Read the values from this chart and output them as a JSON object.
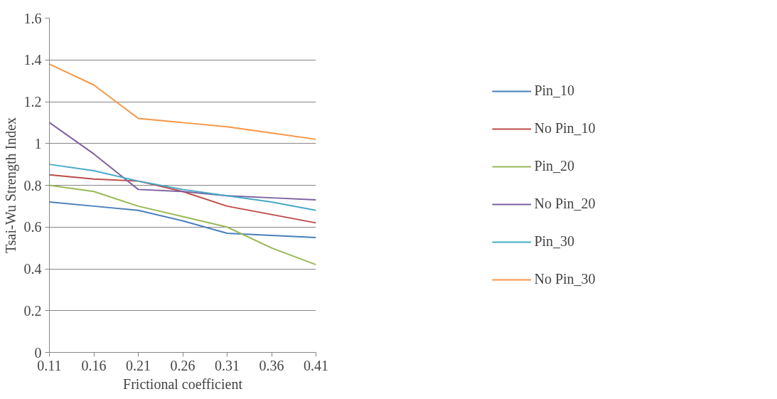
{
  "chart_data": {
    "type": "line",
    "xlabel": "Frictional coefficient",
    "ylabel": "Tsai-Wu Strength Index",
    "x": [
      0.11,
      0.16,
      0.21,
      0.26,
      0.31,
      0.36,
      0.41
    ],
    "xlim": [
      0.11,
      0.41
    ],
    "xticks": [
      0.11,
      0.16,
      0.21,
      0.26,
      0.31,
      0.36,
      0.41
    ],
    "ylim": [
      0,
      1.6
    ],
    "yticks": [
      0,
      {
        "value": 0.2,
        "label": "0.2"
      },
      {
        "value": 0.4,
        "label": "0.4"
      },
      {
        "value": 0.6,
        "label": "0.6"
      },
      {
        "value": 0.8,
        "label": "0.8"
      },
      1,
      {
        "value": 1.2,
        "label": "1.2"
      },
      {
        "value": 1.4,
        "label": "1.4"
      },
      {
        "value": 1.6,
        "label": "1.6"
      }
    ],
    "grid": "y",
    "legend": "right",
    "marker": "none",
    "line_style": "solid",
    "series": [
      {
        "name": "Pin_10",
        "color": "#4a7ebb",
        "values": [
          0.72,
          0.7,
          0.68,
          0.63,
          0.57,
          0.56,
          0.55
        ]
      },
      {
        "name": "No Pin_10",
        "color": "#be4b48",
        "values": [
          0.85,
          0.83,
          0.82,
          0.77,
          0.7,
          0.66,
          0.62
        ]
      },
      {
        "name": "Pin_20",
        "color": "#98b954",
        "values": [
          0.8,
          0.77,
          0.7,
          0.65,
          0.6,
          0.5,
          0.42
        ]
      },
      {
        "name": "No Pin_20",
        "color": "#7d60a0",
        "values": [
          1.1,
          0.95,
          0.78,
          0.77,
          0.75,
          0.74,
          0.73
        ]
      },
      {
        "name": "Pin_30",
        "color": "#46aac5",
        "values": [
          0.9,
          0.87,
          0.82,
          0.78,
          0.75,
          0.72,
          0.68
        ]
      },
      {
        "name": "No Pin_30",
        "color": "#f79646",
        "values": [
          1.38,
          1.28,
          1.12,
          1.1,
          1.08,
          1.05,
          1.02
        ]
      }
    ]
  }
}
